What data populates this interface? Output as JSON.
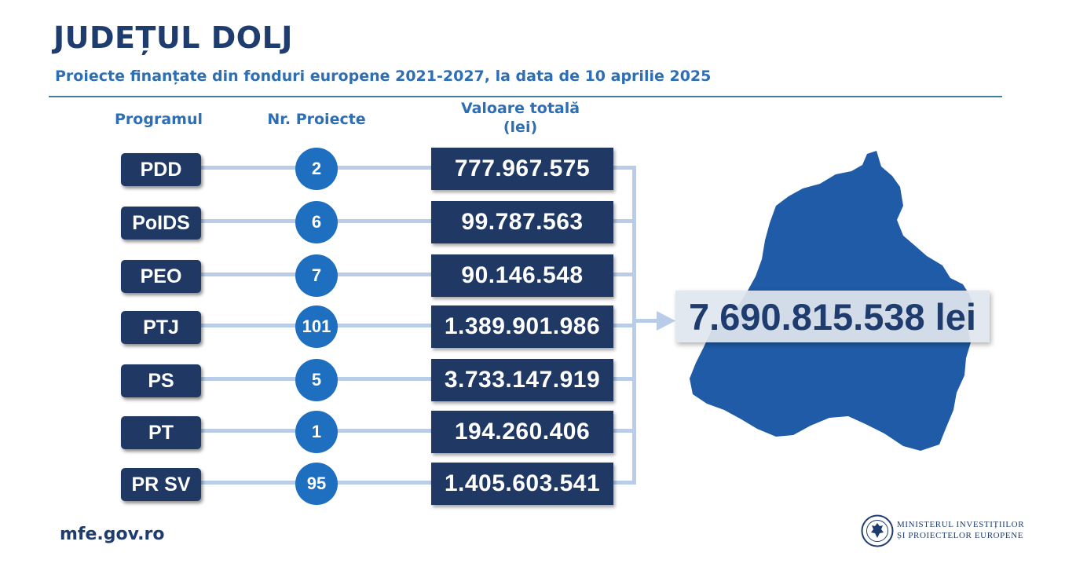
{
  "header": {
    "title": "JUDEȚUL DOLJ",
    "subtitle": "Proiecte finanțate din fonduri europene 2021-2027, la data de 10 aprilie 2025"
  },
  "columns": {
    "program": "Programul",
    "projects": "Nr. Proiecte",
    "value_line1": "Valoare totală",
    "value_line2": "(lei)"
  },
  "rows": [
    {
      "program": "PDD",
      "projects": "2",
      "value": "777.967.575"
    },
    {
      "program": "PoIDS",
      "projects": "6",
      "value": "99.787.563"
    },
    {
      "program": "PEO",
      "projects": "7",
      "value": "90.146.548"
    },
    {
      "program": "PTJ",
      "projects": "101",
      "value": "1.389.901.986"
    },
    {
      "program": "PS",
      "projects": "5",
      "value": "3.733.147.919"
    },
    {
      "program": "PT",
      "projects": "1",
      "value": "194.260.406"
    },
    {
      "program": "PR SV",
      "projects": "95",
      "value": "1.405.603.541"
    }
  ],
  "total": "7.690.815.538 lei",
  "footer": {
    "url": "mfe.gov.ro",
    "ministry_line1": "MINISTERUL INVESTIȚIILOR",
    "ministry_line2": "ȘI PROIECTELOR EUROPENE"
  },
  "colors": {
    "map": "#1f5ba6",
    "dark_box": "#1f3864",
    "circle": "#1f6fc0",
    "connector": "#b9cde9"
  }
}
